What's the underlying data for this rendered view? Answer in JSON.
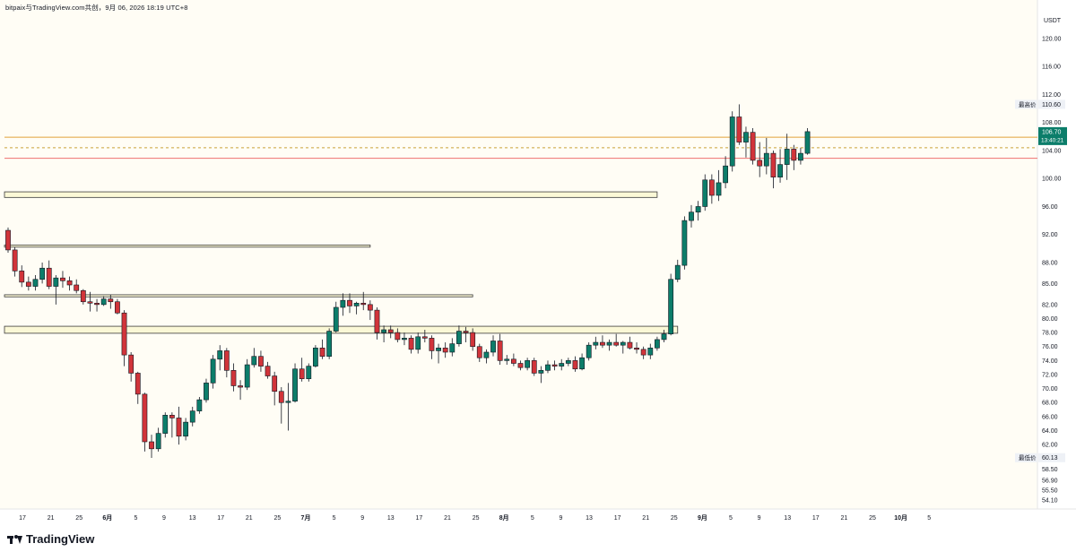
{
  "header": {
    "title": "bitpaix与TradingView.com共创，9月 06, 2026 18:19 UTC+8"
  },
  "footer": {
    "brand": "TradingView"
  },
  "chart_data": {
    "type": "candlestick",
    "currency": "USDT",
    "ylim": [
      52.8,
      125.5
    ],
    "y_ticks": [
      120.0,
      116.0,
      112.0,
      108.0,
      104.0,
      100.0,
      96.0,
      92.0,
      88.0,
      85.0,
      82.0,
      80.0,
      78.0,
      76.0,
      74.0,
      72.0,
      70.0,
      68.0,
      66.0,
      64.0,
      62.0,
      58.5,
      56.9,
      55.5,
      54.1
    ],
    "x_ticks": [
      "17",
      "21",
      "25",
      "6月",
      "5",
      "9",
      "13",
      "17",
      "21",
      "25",
      "7月",
      "5",
      "9",
      "13",
      "17",
      "21",
      "25",
      "8月",
      "5",
      "9",
      "13",
      "17",
      "21",
      "25",
      "9月",
      "5",
      "9",
      "13",
      "17",
      "21",
      "25",
      "10月",
      "5"
    ],
    "x_tick_bold": [
      false,
      false,
      false,
      true,
      false,
      false,
      false,
      false,
      false,
      false,
      true,
      false,
      false,
      false,
      false,
      false,
      false,
      true,
      false,
      false,
      false,
      false,
      false,
      false,
      true,
      false,
      false,
      false,
      false,
      false,
      false,
      true,
      false
    ],
    "labels": {
      "high_label": "最高价",
      "high_value": "110.60",
      "low_label": "最低价",
      "low_value": "60.13",
      "last_value": "106.70",
      "countdown": "13:40:21"
    },
    "colors": {
      "background": "#fffdf5",
      "up": "#0c7d6a",
      "down": "#d1343a",
      "zone_fill": "#fbf8d6",
      "zone_border": "#3a3a3a",
      "line_orange": "#e0a33a",
      "line_red": "#ef6f6f",
      "line_dashed": "#c9a23a"
    },
    "lines": [
      {
        "price": 105.9,
        "style": "solid",
        "color": "orange"
      },
      {
        "price": 104.4,
        "style": "dashed",
        "color": "orange"
      },
      {
        "price": 102.9,
        "style": "solid",
        "color": "red"
      }
    ],
    "zones": [
      {
        "from_index": -1,
        "to_index": 95,
        "low": 97.3,
        "high": 98.1
      },
      {
        "from_index": -1,
        "to_index": 53,
        "low": 90.2,
        "high": 90.5
      },
      {
        "from_index": -1,
        "to_index": 68,
        "low": 83.1,
        "high": 83.4
      },
      {
        "from_index": -1,
        "to_index": 98,
        "low": 77.9,
        "high": 78.9
      }
    ],
    "candles": [
      [
        92.6,
        93.0,
        89.4,
        89.8
      ],
      [
        89.8,
        90.2,
        86.0,
        86.8
      ],
      [
        86.8,
        87.6,
        84.5,
        85.2
      ],
      [
        85.2,
        86.0,
        84.0,
        84.6
      ],
      [
        84.6,
        86.2,
        84.0,
        85.6
      ],
      [
        85.6,
        88.0,
        85.0,
        87.2
      ],
      [
        87.2,
        88.3,
        84.2,
        84.6
      ],
      [
        84.6,
        86.2,
        82.0,
        85.8
      ],
      [
        85.8,
        86.8,
        84.4,
        85.4
      ],
      [
        85.4,
        86.0,
        84.0,
        84.8
      ],
      [
        84.8,
        85.6,
        83.6,
        84.0
      ],
      [
        84.0,
        84.2,
        82.0,
        82.4
      ],
      [
        82.4,
        83.8,
        81.0,
        82.2
      ],
      [
        82.2,
        82.8,
        81.0,
        82.0
      ],
      [
        82.0,
        83.2,
        81.8,
        82.8
      ],
      [
        82.8,
        83.4,
        81.4,
        82.4
      ],
      [
        82.4,
        82.8,
        80.6,
        80.8
      ],
      [
        80.8,
        81.2,
        73.2,
        74.8
      ],
      [
        74.8,
        75.2,
        71.0,
        72.2
      ],
      [
        72.2,
        72.4,
        67.8,
        69.2
      ],
      [
        69.2,
        69.4,
        61.0,
        62.4
      ],
      [
        62.4,
        63.4,
        60.1,
        61.4
      ],
      [
        61.4,
        64.4,
        61.0,
        63.6
      ],
      [
        63.6,
        66.6,
        63.0,
        66.2
      ],
      [
        66.2,
        66.6,
        63.0,
        65.8
      ],
      [
        65.8,
        67.4,
        62.0,
        63.2
      ],
      [
        63.2,
        65.8,
        62.6,
        65.2
      ],
      [
        65.2,
        67.4,
        64.6,
        66.8
      ],
      [
        66.8,
        68.8,
        66.4,
        68.4
      ],
      [
        68.4,
        71.4,
        68.0,
        70.8
      ],
      [
        70.8,
        74.8,
        70.0,
        74.2
      ],
      [
        74.2,
        76.2,
        72.6,
        75.4
      ],
      [
        75.4,
        75.8,
        71.6,
        72.6
      ],
      [
        72.6,
        73.6,
        69.6,
        70.4
      ],
      [
        70.4,
        71.2,
        68.4,
        70.2
      ],
      [
        70.2,
        74.2,
        69.8,
        73.4
      ],
      [
        73.4,
        75.8,
        73.0,
        74.6
      ],
      [
        74.6,
        75.4,
        72.4,
        73.2
      ],
      [
        73.2,
        73.8,
        71.4,
        71.8
      ],
      [
        71.8,
        72.4,
        67.6,
        69.6
      ],
      [
        69.6,
        70.2,
        65.0,
        68.0
      ],
      [
        68.0,
        70.8,
        64.0,
        68.2
      ],
      [
        68.2,
        73.6,
        68.0,
        72.8
      ],
      [
        72.8,
        74.4,
        71.0,
        71.4
      ],
      [
        71.4,
        73.6,
        71.0,
        73.2
      ],
      [
        73.2,
        76.2,
        73.0,
        75.8
      ],
      [
        75.8,
        77.0,
        74.2,
        74.6
      ],
      [
        74.6,
        78.6,
        74.2,
        78.2
      ],
      [
        78.2,
        82.4,
        78.0,
        81.6
      ],
      [
        81.6,
        83.6,
        80.4,
        82.6
      ],
      [
        82.6,
        83.6,
        80.8,
        81.8
      ],
      [
        81.8,
        82.4,
        80.6,
        82.2
      ],
      [
        82.2,
        83.8,
        81.2,
        82.0
      ],
      [
        82.0,
        82.6,
        79.8,
        81.2
      ],
      [
        81.2,
        81.6,
        77.0,
        78.0
      ],
      [
        78.0,
        79.0,
        76.6,
        78.4
      ],
      [
        78.4,
        79.0,
        77.2,
        78.0
      ],
      [
        78.0,
        78.6,
        76.6,
        77.0
      ],
      [
        77.0,
        78.0,
        76.2,
        77.2
      ],
      [
        77.2,
        77.6,
        75.0,
        75.6
      ],
      [
        75.6,
        78.0,
        75.0,
        77.4
      ],
      [
        77.4,
        78.4,
        76.6,
        77.2
      ],
      [
        77.2,
        77.6,
        74.2,
        75.4
      ],
      [
        75.4,
        76.4,
        73.6,
        75.8
      ],
      [
        75.8,
        76.6,
        74.4,
        75.2
      ],
      [
        75.2,
        77.2,
        74.6,
        76.4
      ],
      [
        76.4,
        79.0,
        76.0,
        78.2
      ],
      [
        78.2,
        78.8,
        76.6,
        78.0
      ],
      [
        78.0,
        78.6,
        75.4,
        76.0
      ],
      [
        76.0,
        76.4,
        73.8,
        74.4
      ],
      [
        74.4,
        75.6,
        73.6,
        75.2
      ],
      [
        75.2,
        77.6,
        74.6,
        76.8
      ],
      [
        76.8,
        77.8,
        73.4,
        74.0
      ],
      [
        74.0,
        74.8,
        73.4,
        74.2
      ],
      [
        74.2,
        75.0,
        73.2,
        73.6
      ],
      [
        73.6,
        74.0,
        72.6,
        73.0
      ],
      [
        73.0,
        74.4,
        72.6,
        74.0
      ],
      [
        74.0,
        74.4,
        71.8,
        72.2
      ],
      [
        72.2,
        73.2,
        70.8,
        72.6
      ],
      [
        72.6,
        74.0,
        72.2,
        73.4
      ],
      [
        73.4,
        74.0,
        72.6,
        73.2
      ],
      [
        73.2,
        74.2,
        72.6,
        73.6
      ],
      [
        73.6,
        74.4,
        73.2,
        74.0
      ],
      [
        74.0,
        74.6,
        72.4,
        72.8
      ],
      [
        72.8,
        75.0,
        72.6,
        74.4
      ],
      [
        74.4,
        76.6,
        74.0,
        76.2
      ],
      [
        76.2,
        77.4,
        75.6,
        76.6
      ],
      [
        76.6,
        77.6,
        75.8,
        76.2
      ],
      [
        76.2,
        77.0,
        75.4,
        76.6
      ],
      [
        76.6,
        77.8,
        76.0,
        76.2
      ],
      [
        76.2,
        76.8,
        75.0,
        76.6
      ],
      [
        76.6,
        77.4,
        75.6,
        75.8
      ],
      [
        75.8,
        76.6,
        75.0,
        75.6
      ],
      [
        75.6,
        76.0,
        74.2,
        74.8
      ],
      [
        74.8,
        76.4,
        74.2,
        75.8
      ],
      [
        75.8,
        77.4,
        75.4,
        77.0
      ],
      [
        77.0,
        78.4,
        76.6,
        77.8
      ],
      [
        77.8,
        86.4,
        77.6,
        85.6
      ],
      [
        85.6,
        88.4,
        85.2,
        87.6
      ],
      [
        87.6,
        94.6,
        87.0,
        94.0
      ],
      [
        94.0,
        96.2,
        93.0,
        95.2
      ],
      [
        95.2,
        96.8,
        94.0,
        96.0
      ],
      [
        96.0,
        100.6,
        95.4,
        99.8
      ],
      [
        99.8,
        100.6,
        96.4,
        97.6
      ],
      [
        97.6,
        101.2,
        96.8,
        99.4
      ],
      [
        99.4,
        103.2,
        98.6,
        101.8
      ],
      [
        101.8,
        109.6,
        101.0,
        108.8
      ],
      [
        108.8,
        110.6,
        104.8,
        105.2
      ],
      [
        105.2,
        107.4,
        103.0,
        106.6
      ],
      [
        106.6,
        107.2,
        102.0,
        102.6
      ],
      [
        102.6,
        105.2,
        100.2,
        101.8
      ],
      [
        101.8,
        105.8,
        100.6,
        103.6
      ],
      [
        103.6,
        104.0,
        98.6,
        100.2
      ],
      [
        100.2,
        104.2,
        99.4,
        102.0
      ],
      [
        102.0,
        106.4,
        99.8,
        104.2
      ],
      [
        104.2,
        104.8,
        101.2,
        102.6
      ],
      [
        102.6,
        104.4,
        102.0,
        103.6
      ],
      [
        103.6,
        107.2,
        103.4,
        106.7
      ]
    ]
  }
}
